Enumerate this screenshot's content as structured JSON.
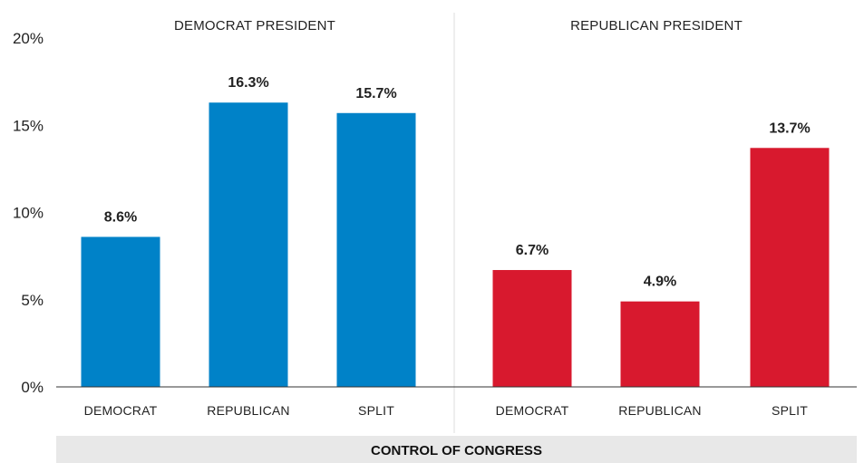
{
  "chart_data": {
    "type": "bar",
    "ylim": [
      0,
      20
    ],
    "y_ticks": [
      "0%",
      "5%",
      "10%",
      "15%",
      "20%"
    ],
    "grid": false,
    "legend": "none",
    "xlabel": "CONTROL OF CONGRESS",
    "panels": [
      {
        "title": "DEMOCRAT PRESIDENT",
        "color": "#0082c8",
        "categories": [
          "DEMOCRAT",
          "REPUBLICAN",
          "SPLIT"
        ],
        "values": [
          8.6,
          16.3,
          15.7
        ],
        "labels": [
          "8.6%",
          "16.3%",
          "15.7%"
        ]
      },
      {
        "title": "REPUBLICAN PRESIDENT",
        "color": "#d8192e",
        "categories": [
          "DEMOCRAT",
          "REPUBLICAN",
          "SPLIT"
        ],
        "values": [
          6.7,
          4.9,
          13.7
        ],
        "labels": [
          "6.7%",
          "4.9%",
          "13.7%"
        ]
      }
    ]
  }
}
